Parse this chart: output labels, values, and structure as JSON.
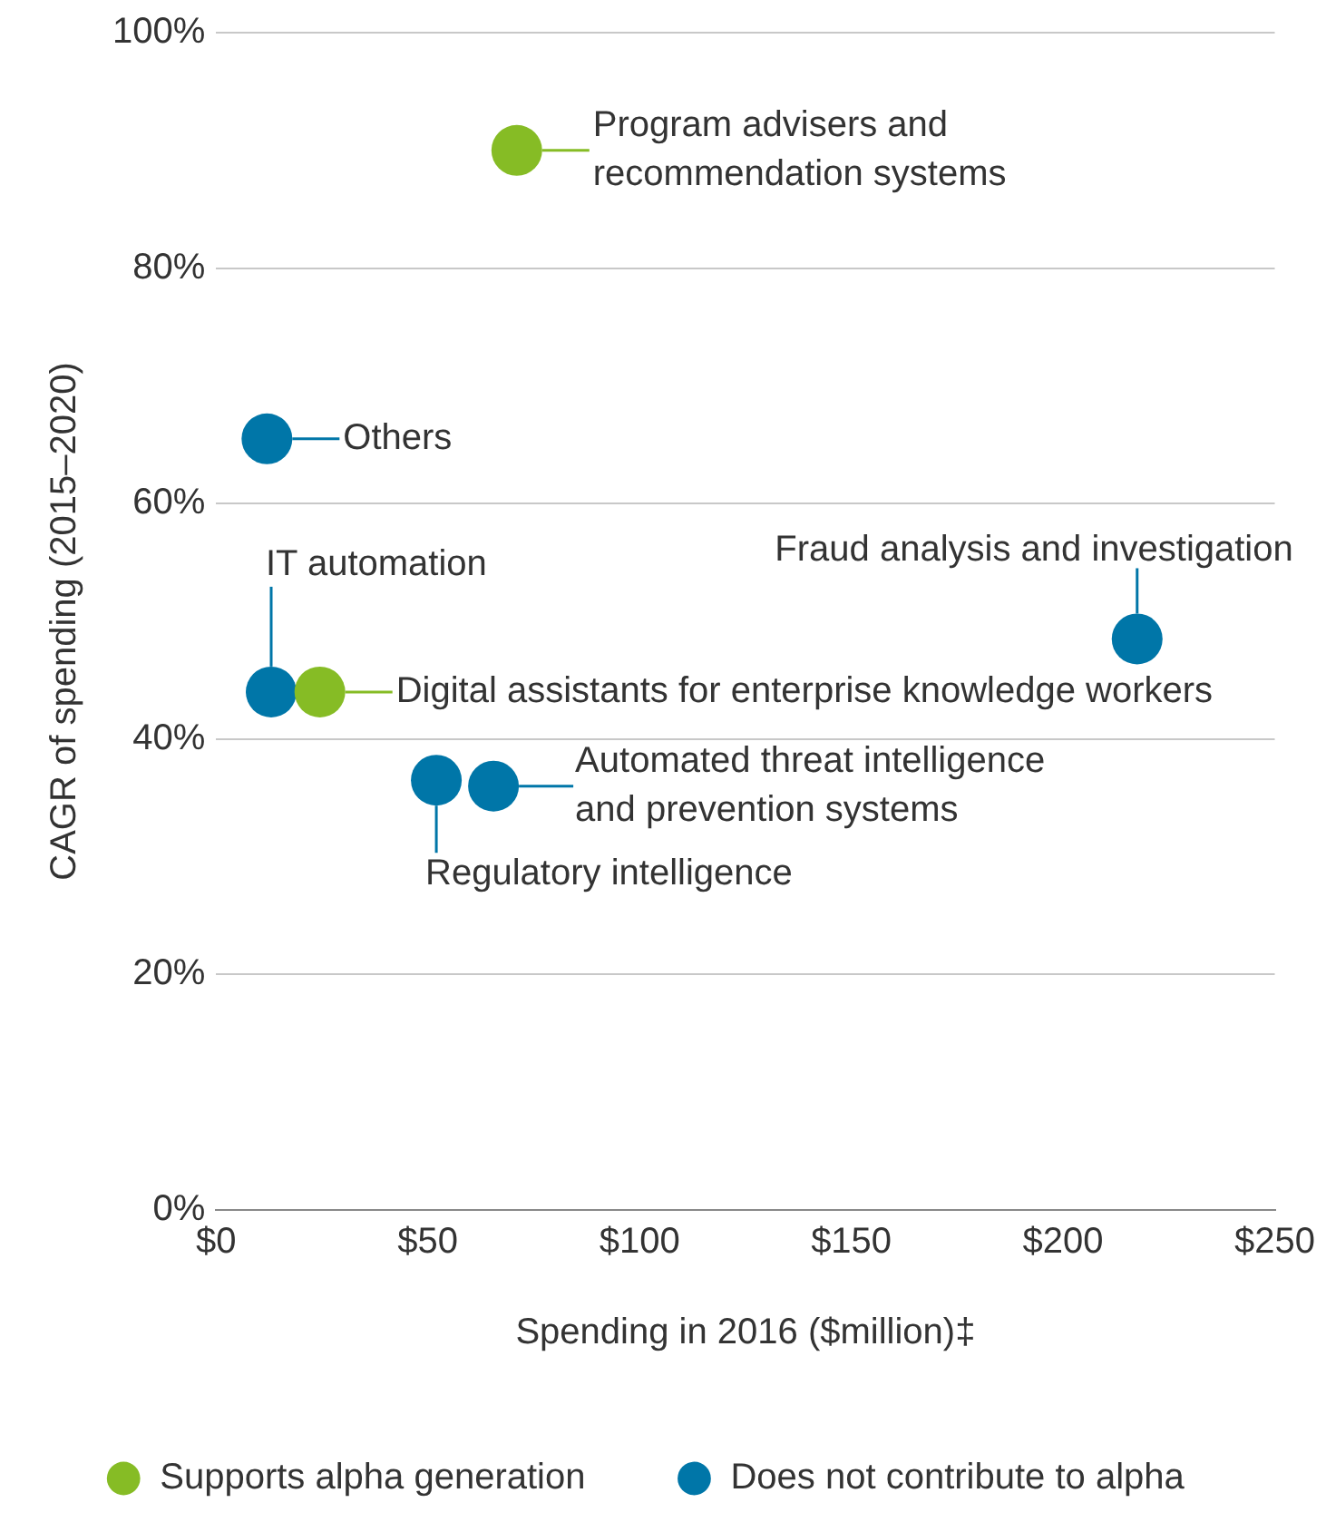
{
  "chart_data": {
    "type": "scatter",
    "xlabel": "Spending in 2016 ($million)‡",
    "ylabel": "CAGR of spending (2015–2020)",
    "xlim": [
      0,
      250
    ],
    "xticks": [
      {
        "value": 0,
        "label": "$0"
      },
      {
        "value": 50,
        "label": "$50"
      },
      {
        "value": 100,
        "label": "$100"
      },
      {
        "value": 150,
        "label": "$150"
      },
      {
        "value": 200,
        "label": "$200"
      },
      {
        "value": 250,
        "label": "$250"
      }
    ],
    "ylim": [
      0,
      100
    ],
    "yticks": [
      {
        "value": 0,
        "label": "0%"
      },
      {
        "value": 20,
        "label": "20%"
      },
      {
        "value": 40,
        "label": "40%"
      },
      {
        "value": 60,
        "label": "60%"
      },
      {
        "value": 80,
        "label": "80%"
      },
      {
        "value": 100,
        "label": "100%"
      }
    ],
    "grid": "y",
    "legend": "bottom",
    "marker": "circle",
    "series": [
      {
        "name": "Supports alpha generation",
        "color": "#86bc25",
        "x": [
          71,
          24.5
        ],
        "values": [
          90,
          44
        ]
      },
      {
        "name": "Does not contribute to alpha",
        "color": "#0076a8",
        "x": [
          12,
          13,
          52,
          65.5,
          217.5
        ],
        "values": [
          65.5,
          44,
          36.5,
          36,
          48.5
        ]
      }
    ],
    "annotations": [
      {
        "text": "Program advisers and recommendation systems",
        "x": 71,
        "y": 90
      },
      {
        "text": "Others",
        "x": 12,
        "y": 65.5
      },
      {
        "text": "IT automation",
        "x": 13,
        "y": 44
      },
      {
        "text": "Digital assistants for enterprise knowledge workers",
        "x": 24.5,
        "y": 44
      },
      {
        "text": "Regulatory intelligence",
        "x": 52,
        "y": 36.5
      },
      {
        "text": "Automated threat intelligence and prevention systems",
        "x": 65.5,
        "y": 36
      },
      {
        "text": "Fraud analysis and investigation",
        "x": 217.5,
        "y": 48.5
      }
    ]
  }
}
